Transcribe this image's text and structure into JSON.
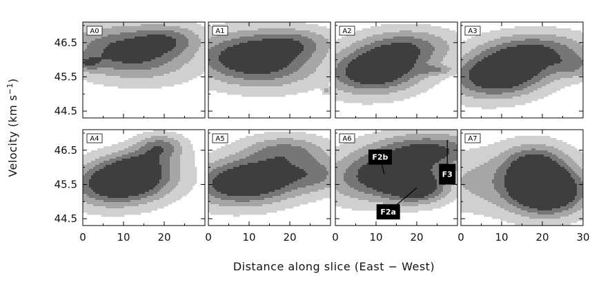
{
  "chart_data": {
    "type": "contour",
    "layout": "2x4 grid of position-velocity panels",
    "xlabel": "Distance along slice (East − West)",
    "ylabel_main": "Velocity (km s",
    "ylabel_sup": "−1",
    "ylabel_close": ")",
    "xlim": [
      0,
      30
    ],
    "ylim": [
      44.3,
      47.1
    ],
    "x_ticks": [
      0,
      10,
      20
    ],
    "x_ticks_last_panel": [
      0,
      10,
      20,
      30
    ],
    "y_ticks": [
      44.5,
      45.5,
      46.5
    ],
    "x_tick_labels": [
      "0",
      "10",
      "20"
    ],
    "x_tick_labels_last": [
      "0",
      "10",
      "20",
      "30"
    ],
    "y_tick_labels": [
      "44.5",
      "45.5",
      "46.5"
    ],
    "contour_fill_colors": [
      "#d0d0d0",
      "#a6a6a6",
      "#767676",
      "#3e3e3e"
    ],
    "panels": [
      {
        "label": "A0",
        "row": 0,
        "col": 0,
        "blobs": [
          {
            "cx": 11,
            "cy": 46.2,
            "sx": 10,
            "sy": 0.5,
            "a": 1.0,
            "rot": 0.05
          },
          {
            "cx": 21,
            "cy": 46.6,
            "sx": 6,
            "sy": 0.3,
            "a": 0.55
          },
          {
            "cx": 1,
            "cy": 45.9,
            "sx": 2.5,
            "sy": 0.15,
            "a": 0.45
          }
        ]
      },
      {
        "label": "A1",
        "row": 0,
        "col": 1,
        "blobs": [
          {
            "cx": 11,
            "cy": 46.0,
            "sx": 10,
            "sy": 0.5,
            "a": 1.2,
            "rot": 0.04
          },
          {
            "cx": 21,
            "cy": 46.5,
            "sx": 7,
            "sy": 0.3,
            "a": 0.55
          },
          {
            "cx": 29,
            "cy": 45.1,
            "sx": 0.6,
            "sy": 0.08,
            "a": 0.35
          }
        ]
      },
      {
        "label": "A2",
        "row": 0,
        "col": 2,
        "blobs": [
          {
            "cx": 10,
            "cy": 45.7,
            "sx": 8,
            "sy": 0.45,
            "a": 1.3,
            "rot": -0.04
          },
          {
            "cx": 18,
            "cy": 46.4,
            "sx": 8,
            "sy": 0.35,
            "a": 0.65
          },
          {
            "cx": 25,
            "cy": 45.7,
            "sx": 3,
            "sy": 0.1,
            "a": 0.4
          }
        ]
      },
      {
        "label": "A3",
        "row": 0,
        "col": 3,
        "blobs": [
          {
            "cx": 10,
            "cy": 45.6,
            "sx": 8,
            "sy": 0.45,
            "a": 1.4,
            "rot": -0.06
          },
          {
            "cx": 19,
            "cy": 46.3,
            "sx": 9,
            "sy": 0.35,
            "a": 0.7
          },
          {
            "cx": 28,
            "cy": 45.8,
            "sx": 4,
            "sy": 0.25,
            "a": 0.45
          }
        ]
      },
      {
        "label": "A4",
        "row": 1,
        "col": 0,
        "blobs": [
          {
            "cx": 10,
            "cy": 45.6,
            "sx": 8,
            "sy": 0.45,
            "a": 1.5,
            "rot": -0.05
          },
          {
            "cx": 19,
            "cy": 46.6,
            "sx": 4,
            "sy": 0.25,
            "a": 0.7
          },
          {
            "cx": 14,
            "cy": 46.1,
            "sx": 5,
            "sy": 0.3,
            "a": 0.4
          }
        ]
      },
      {
        "label": "A5",
        "row": 1,
        "col": 1,
        "blobs": [
          {
            "cx": 10,
            "cy": 45.6,
            "sx": 9,
            "sy": 0.45,
            "a": 1.4,
            "rot": -0.05
          },
          {
            "cx": 19,
            "cy": 46.5,
            "sx": 7,
            "sy": 0.3,
            "a": 0.6
          },
          {
            "cx": 27,
            "cy": 45.8,
            "sx": 5,
            "sy": 0.35,
            "a": 0.5
          }
        ]
      },
      {
        "label": "A6",
        "row": 1,
        "col": 2,
        "blobs": [
          {
            "cx": 12,
            "cy": 45.8,
            "sx": 9,
            "sy": 0.5,
            "a": 1.1,
            "rot": -0.05
          },
          {
            "cx": 20,
            "cy": 45.4,
            "sx": 5,
            "sy": 0.3,
            "a": 1.0
          },
          {
            "cx": 24,
            "cy": 46.5,
            "sx": 9,
            "sy": 0.35,
            "a": 0.8
          }
        ]
      },
      {
        "label": "A7",
        "row": 1,
        "col": 3,
        "blobs": [
          {
            "cx": 21,
            "cy": 45.3,
            "sx": 6,
            "sy": 0.45,
            "a": 1.5
          },
          {
            "cx": 18,
            "cy": 46.1,
            "sx": 5,
            "sy": 0.4,
            "a": 0.8
          },
          {
            "cx": 10,
            "cy": 45.6,
            "sx": 14,
            "sy": 0.6,
            "a": 0.45
          }
        ]
      }
    ],
    "annotations": [
      {
        "panel": "A6",
        "text": "F2b",
        "from": [
          11,
          46.3
        ],
        "to": [
          12,
          45.8
        ]
      },
      {
        "panel": "A6",
        "text": "F2a",
        "from": [
          13,
          44.7
        ],
        "to": [
          20,
          45.4
        ]
      },
      {
        "panel": "A6",
        "text": "F3",
        "from": [
          27.5,
          45.8
        ],
        "to": [
          27.5,
          46.8
        ]
      }
    ]
  }
}
